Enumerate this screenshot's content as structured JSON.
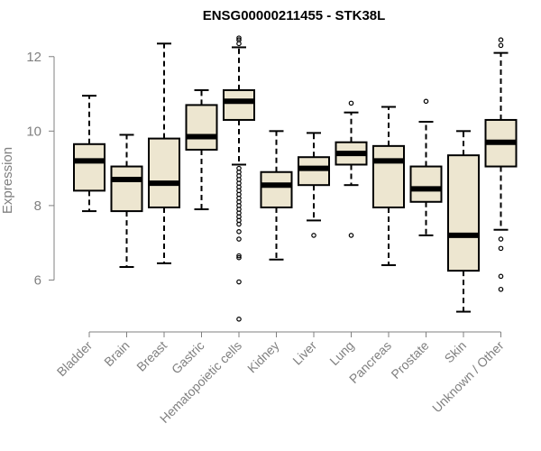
{
  "chart_data": {
    "type": "boxplot",
    "title": "ENSG00000211455 - STK38L",
    "xlabel": "",
    "ylabel": "Expression",
    "ylim": [
      4.8,
      12.6
    ],
    "yticks": [
      6,
      8,
      10,
      12
    ],
    "colors": {
      "box_fill": "#EDE6D0",
      "box_stroke": "#000000",
      "axis": "#808080"
    },
    "categories": [
      "Bladder",
      "Brain",
      "Breast",
      "Gastric",
      "Hematopoietic cells",
      "Kidney",
      "Liver",
      "Lung",
      "Pancreas",
      "Prostate",
      "Skin",
      "Unknown / Other"
    ],
    "boxes": [
      {
        "q1": 8.4,
        "median": 9.2,
        "q3": 9.65,
        "whisker_low": 7.85,
        "whisker_high": 10.95,
        "outliers": []
      },
      {
        "q1": 7.85,
        "median": 8.7,
        "q3": 9.05,
        "whisker_low": 6.35,
        "whisker_high": 9.9,
        "outliers": []
      },
      {
        "q1": 7.95,
        "median": 8.6,
        "q3": 9.8,
        "whisker_low": 6.45,
        "whisker_high": 12.35,
        "outliers": []
      },
      {
        "q1": 9.5,
        "median": 9.85,
        "q3": 10.7,
        "whisker_low": 7.9,
        "whisker_high": 11.1,
        "outliers": []
      },
      {
        "q1": 10.3,
        "median": 10.8,
        "q3": 11.1,
        "whisker_low": 9.1,
        "whisker_high": 12.25,
        "outliers": [
          12.35,
          12.45,
          12.5,
          9.0,
          8.9,
          8.8,
          8.7,
          8.6,
          8.5,
          8.4,
          8.3,
          8.2,
          8.1,
          8.0,
          7.9,
          7.8,
          7.7,
          7.6,
          7.5,
          7.3,
          7.1,
          6.65,
          6.6,
          5.95,
          4.95
        ]
      },
      {
        "q1": 7.95,
        "median": 8.55,
        "q3": 8.9,
        "whisker_low": 6.55,
        "whisker_high": 10.0,
        "outliers": []
      },
      {
        "q1": 8.55,
        "median": 9.0,
        "q3": 9.3,
        "whisker_low": 7.6,
        "whisker_high": 9.95,
        "outliers": [
          7.2
        ]
      },
      {
        "q1": 9.1,
        "median": 9.4,
        "q3": 9.7,
        "whisker_low": 8.55,
        "whisker_high": 10.5,
        "outliers": [
          10.75,
          7.2
        ]
      },
      {
        "q1": 7.95,
        "median": 9.2,
        "q3": 9.6,
        "whisker_low": 6.4,
        "whisker_high": 10.65,
        "outliers": []
      },
      {
        "q1": 8.1,
        "median": 8.45,
        "q3": 9.05,
        "whisker_low": 7.2,
        "whisker_high": 10.25,
        "outliers": [
          10.8
        ]
      },
      {
        "q1": 6.25,
        "median": 7.2,
        "q3": 9.35,
        "whisker_low": 5.15,
        "whisker_high": 10.0,
        "outliers": []
      },
      {
        "q1": 9.05,
        "median": 9.7,
        "q3": 10.3,
        "whisker_low": 7.35,
        "whisker_high": 12.1,
        "outliers": [
          12.3,
          12.45,
          7.1,
          6.85,
          6.1,
          5.75
        ]
      }
    ]
  }
}
